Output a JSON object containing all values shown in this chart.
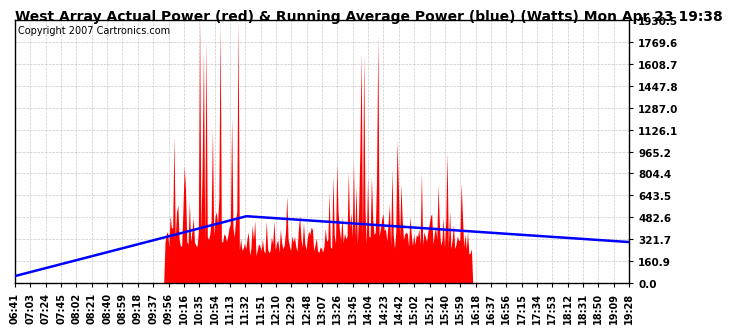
{
  "title": "West Array Actual Power (red) & Running Average Power (blue) (Watts) Mon Apr 23 19:38",
  "copyright": "Copyright 2007 Cartronics.com",
  "y_max": 1930.5,
  "y_ticks": [
    0.0,
    160.9,
    321.7,
    482.6,
    643.5,
    804.4,
    965.2,
    1126.1,
    1287.0,
    1447.8,
    1608.7,
    1769.6,
    1930.5
  ],
  "y_tick_labels": [
    "0.0",
    "160.9",
    "321.7",
    "482.6",
    "643.5",
    "804.4",
    "965.2",
    "1126.1",
    "1287.0",
    "1447.8",
    "1608.7",
    "1769.6",
    "1930.5"
  ],
  "x_labels": [
    "06:41",
    "07:03",
    "07:24",
    "07:45",
    "08:02",
    "08:21",
    "08:40",
    "08:59",
    "09:18",
    "09:37",
    "09:56",
    "10:16",
    "10:35",
    "10:54",
    "11:13",
    "11:32",
    "11:51",
    "12:10",
    "12:29",
    "12:48",
    "13:07",
    "13:26",
    "13:45",
    "14:04",
    "14:23",
    "14:42",
    "15:02",
    "15:21",
    "15:40",
    "15:59",
    "16:18",
    "16:37",
    "16:56",
    "17:15",
    "17:34",
    "17:53",
    "18:12",
    "18:31",
    "18:50",
    "19:09",
    "19:28"
  ],
  "bg_color": "#ffffff",
  "plot_bg_color": "#ffffff",
  "grid_color": "#bbbbbb",
  "red_color": "#ff0000",
  "blue_color": "#0000ff",
  "title_fontsize": 10,
  "copyright_fontsize": 7
}
